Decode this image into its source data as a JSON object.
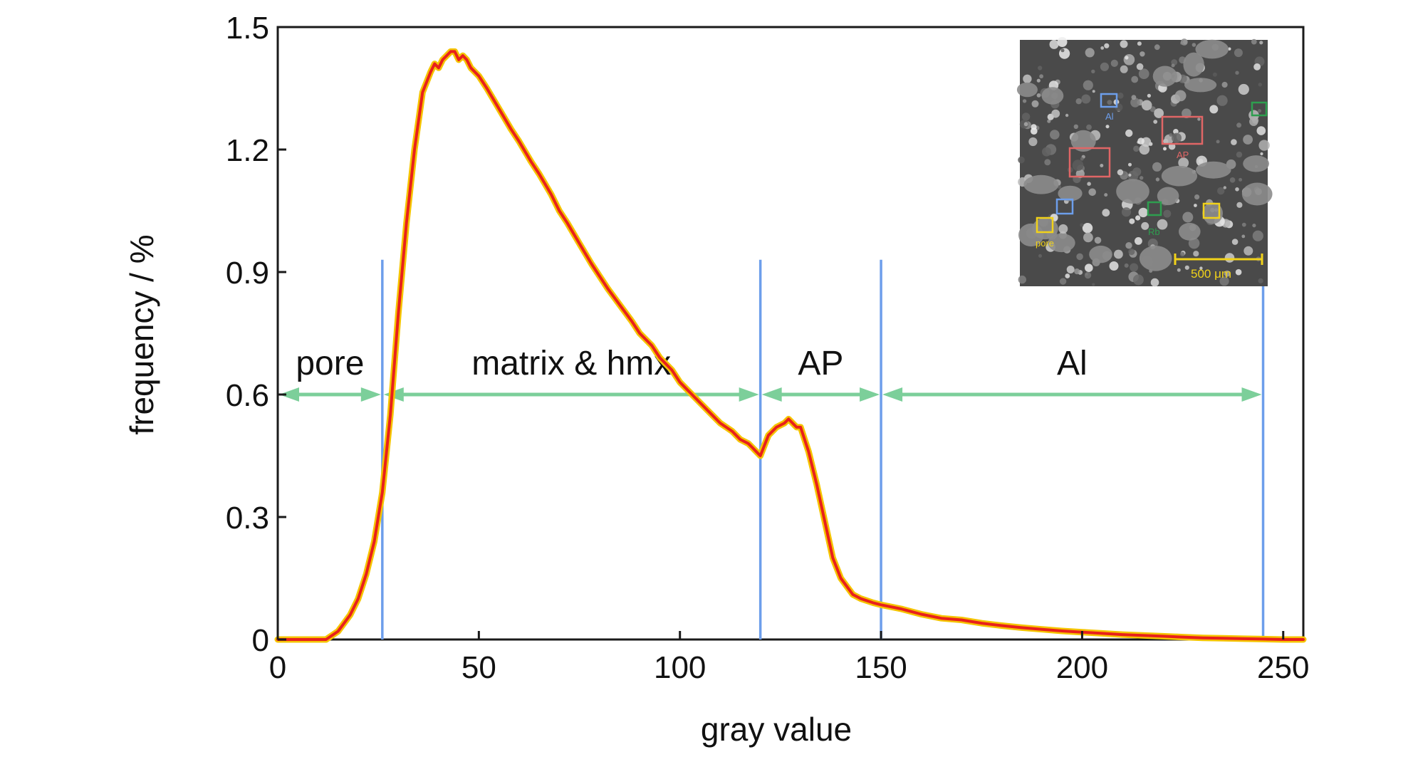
{
  "chart_data": {
    "type": "line",
    "xlabel": "gray value",
    "ylabel": "frequency / %",
    "xlim": [
      0,
      255
    ],
    "ylim": [
      0,
      1.5
    ],
    "x_ticks": [
      "0",
      "50",
      "100",
      "150",
      "200",
      "250"
    ],
    "y_ticks": [
      "0",
      "0.3",
      "0.6",
      "0.9",
      "1.2",
      "1.5"
    ],
    "grid": false,
    "legend": "none",
    "series": [
      {
        "color": "#e8201c",
        "halo_color": "#f5c400",
        "x": [
          0,
          12,
          15,
          18,
          20,
          22,
          24,
          26,
          28,
          30,
          32,
          34,
          36,
          38,
          39,
          40,
          41,
          42,
          43,
          44,
          45,
          46,
          47,
          48,
          50,
          52,
          55,
          58,
          60,
          63,
          65,
          68,
          70,
          72,
          75,
          78,
          80,
          82,
          85,
          88,
          90,
          93,
          95,
          98,
          100,
          103,
          105,
          108,
          110,
          113,
          115,
          117,
          118,
          119,
          120,
          122,
          124,
          126,
          127,
          128,
          129,
          130,
          132,
          134,
          136,
          138,
          140,
          143,
          145,
          148,
          150,
          155,
          160,
          165,
          170,
          175,
          180,
          185,
          190,
          195,
          200,
          205,
          210,
          215,
          220,
          225,
          230,
          235,
          240,
          245,
          250,
          255
        ],
        "y": [
          0.0,
          0.0,
          0.02,
          0.06,
          0.1,
          0.16,
          0.24,
          0.36,
          0.55,
          0.8,
          1.02,
          1.2,
          1.34,
          1.39,
          1.41,
          1.4,
          1.42,
          1.43,
          1.44,
          1.44,
          1.42,
          1.43,
          1.42,
          1.4,
          1.38,
          1.35,
          1.3,
          1.25,
          1.22,
          1.17,
          1.14,
          1.09,
          1.05,
          1.02,
          0.97,
          0.92,
          0.89,
          0.86,
          0.82,
          0.78,
          0.75,
          0.72,
          0.69,
          0.66,
          0.63,
          0.6,
          0.58,
          0.55,
          0.53,
          0.51,
          0.49,
          0.48,
          0.47,
          0.46,
          0.45,
          0.5,
          0.52,
          0.53,
          0.54,
          0.53,
          0.52,
          0.52,
          0.46,
          0.38,
          0.29,
          0.2,
          0.15,
          0.11,
          0.1,
          0.09,
          0.085,
          0.075,
          0.062,
          0.052,
          0.048,
          0.04,
          0.034,
          0.029,
          0.025,
          0.021,
          0.018,
          0.015,
          0.012,
          0.01,
          0.008,
          0.006,
          0.004,
          0.003,
          0.002,
          0.001,
          0.0,
          0.0
        ]
      }
    ],
    "boundaries": [
      26,
      120,
      150,
      245
    ],
    "boundary_color": "#6d9eeb",
    "arrow_color": "#7ccf9a",
    "arrow_y": 0.6,
    "regions": [
      {
        "label": "pore",
        "from": 0,
        "to": 26
      },
      {
        "label": "matrix & hmx",
        "from": 26,
        "to": 120
      },
      {
        "label": "AP",
        "from": 120,
        "to": 150
      },
      {
        "label": "Al",
        "from": 150,
        "to": 245
      }
    ],
    "region_label_y": 0.68
  },
  "inset": {
    "description_icon": "micrograph-image",
    "labels": [
      {
        "text": "Al",
        "color": "#6d9eeb"
      },
      {
        "text": "AP",
        "color": "#e06666"
      },
      {
        "text": "Rb",
        "color": "#2e9e4f"
      },
      {
        "text": "pore",
        "color": "#f1d21a"
      }
    ],
    "scale_bar": "500 μm",
    "scale_bar_color": "#f1d21a"
  }
}
